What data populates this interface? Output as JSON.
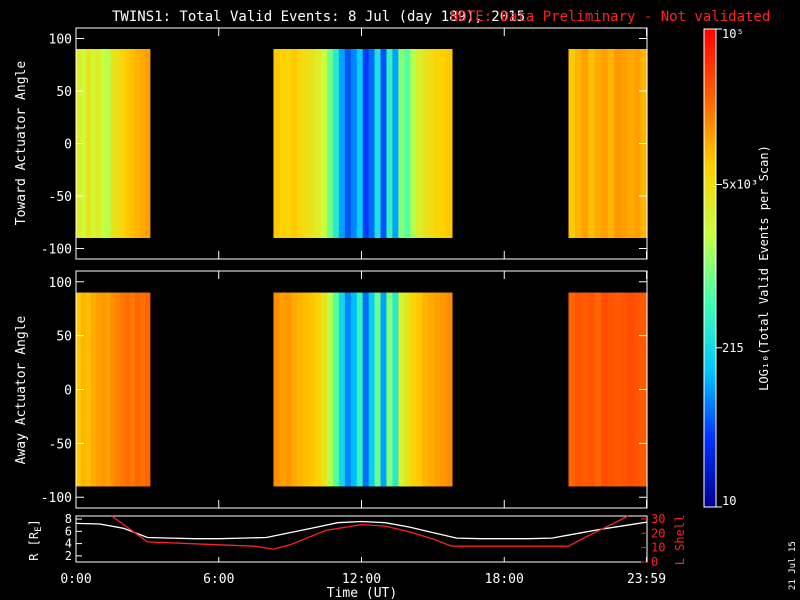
{
  "header": {
    "title": "TWINS1: Total Valid Events:  8 Jul (day 189), 2015",
    "note": "NOTE: Data Preliminary - Not validated",
    "note_color": "#ff2020"
  },
  "colorbar": {
    "label": "LOG₁₀(Total Valid Events per Scan)",
    "tick_labels": [
      "10",
      "215",
      "5x10³",
      "10⁵"
    ],
    "tick_values": [
      10,
      215,
      5000,
      100000
    ],
    "scale": "log",
    "colormap": [
      "#000090",
      "#0030ff",
      "#00c8ff",
      "#40ffb0",
      "#c8ff40",
      "#ffd000",
      "#ff6000",
      "#ff0000"
    ]
  },
  "footer": {
    "date_stamp": "21 Jul 15",
    "xlabel": "Time (UT)"
  },
  "chart_data": [
    {
      "type": "heatmap",
      "panel": "top",
      "ylabel": "Toward Actuator Angle",
      "ylim": [
        -110,
        110
      ],
      "y_ticks": [
        100,
        50,
        0,
        -50,
        -100
      ],
      "y_data_range": [
        -90,
        90
      ],
      "xlim": [
        0,
        24
      ],
      "x_tick_labels": [
        "0:00",
        "6:00",
        "12:00",
        "18:00",
        "23:59"
      ],
      "x_tick_values": [
        0,
        6,
        12,
        18,
        23.98
      ],
      "no_data_color": "#000000",
      "data_blocks": [
        {
          "start": 0,
          "end": 3.1,
          "log10_levels": [
            3.5,
            3.3,
            3.6,
            3.4,
            3.5,
            3.3,
            3.2,
            3.6,
            3.7,
            3.8,
            3.9,
            3.95,
            4.0,
            4.05,
            4.1
          ]
        },
        {
          "start": 8.3,
          "end": 15.8,
          "log10_levels": [
            3.9,
            3.85,
            3.8,
            3.9,
            3.75,
            3.7,
            3.6,
            3.5,
            3.3,
            2.9,
            2.5,
            2.0,
            1.7,
            1.9,
            2.2,
            1.6,
            1.8,
            2.4,
            1.7,
            2.6,
            2.0,
            3.0,
            2.8,
            3.2,
            3.5,
            3.6,
            3.7,
            3.8,
            3.85,
            3.9
          ]
        },
        {
          "start": 20.7,
          "end": 24.0,
          "log10_levels": [
            3.9,
            4.0,
            4.1,
            3.95,
            4.05,
            4.1,
            4.0,
            4.15,
            4.1,
            4.05,
            4.1,
            4.0
          ]
        }
      ]
    },
    {
      "type": "heatmap",
      "panel": "middle",
      "ylabel": "Away Actuator Angle",
      "ylim": [
        -110,
        110
      ],
      "y_ticks": [
        100,
        50,
        0,
        -50,
        -100
      ],
      "y_data_range": [
        -90,
        90
      ],
      "xlim": [
        0,
        24
      ],
      "x_tick_labels": [
        "0:00",
        "6:00",
        "12:00",
        "18:00",
        "23:59"
      ],
      "x_tick_values": [
        0,
        6,
        12,
        18,
        23.98
      ],
      "no_data_color": "#000000",
      "data_blocks": [
        {
          "start": 0,
          "end": 3.1,
          "log10_levels": [
            3.9,
            4.0,
            3.95,
            4.05,
            4.1,
            4.15,
            4.1,
            4.2,
            4.25,
            4.3,
            4.35,
            4.3,
            4.4,
            4.35,
            4.4
          ]
        },
        {
          "start": 8.3,
          "end": 15.8,
          "log10_levels": [
            4.2,
            4.1,
            4.15,
            4.05,
            4.0,
            3.95,
            3.9,
            3.8,
            3.6,
            3.2,
            2.8,
            2.3,
            1.9,
            2.1,
            2.6,
            1.8,
            2.2,
            2.9,
            2.0,
            3.0,
            2.5,
            3.4,
            3.6,
            3.8,
            3.9,
            4.0,
            4.05,
            4.1,
            4.15,
            4.2
          ]
        },
        {
          "start": 20.7,
          "end": 24.0,
          "log10_levels": [
            4.4,
            4.5,
            4.45,
            4.5,
            4.4,
            4.55,
            4.5,
            4.45,
            4.5,
            4.55,
            4.5,
            4.45
          ]
        }
      ]
    },
    {
      "type": "line",
      "panel": "bottom",
      "ylabel_left": "R [R",
      "ylabel_left_sub": "E",
      "ylabel_left_close": "]",
      "ylabel_right": "L Shell",
      "ylim_left": [
        1,
        8.5
      ],
      "y_ticks_left": [
        8,
        6,
        4,
        2
      ],
      "ylim_right": [
        0,
        32
      ],
      "y_ticks_right": [
        30,
        20,
        10,
        0
      ],
      "xlim": [
        0,
        24
      ],
      "series": [
        {
          "axis": "left",
          "color": "#ffffff",
          "x": [
            0,
            1,
            2,
            3,
            4,
            5,
            6,
            7,
            8,
            9,
            10,
            11,
            12,
            13,
            14,
            15,
            16,
            17,
            18,
            19,
            20,
            21,
            22,
            23,
            24
          ],
          "y": [
            7.3,
            7.2,
            6.5,
            5.0,
            4.9,
            4.8,
            4.8,
            4.9,
            5.0,
            5.8,
            6.6,
            7.4,
            7.6,
            7.4,
            6.7,
            5.8,
            4.9,
            4.8,
            4.8,
            4.8,
            4.9,
            5.6,
            6.3,
            6.9,
            7.5
          ]
        },
        {
          "axis": "right",
          "color": "#ff2020",
          "x": [
            1.5,
            3,
            4.5,
            6,
            7.5,
            8.3,
            9,
            10.5,
            12,
            13,
            14,
            15,
            15.8,
            17,
            18.5,
            20,
            20.7,
            21.5,
            22.5,
            23.2
          ],
          "y": [
            32,
            14,
            13,
            12,
            11,
            9,
            12,
            22,
            26,
            25,
            21,
            16,
            11,
            11,
            11,
            11,
            11,
            18,
            26,
            32
          ]
        }
      ]
    }
  ]
}
